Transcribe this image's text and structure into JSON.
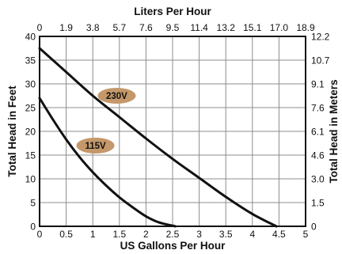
{
  "chart_data": {
    "type": "line",
    "title": "",
    "xlabel": "US Gallons Per Hour",
    "ylabel": "Total Head in Feet",
    "x2label": "Liters Per Hour",
    "y2label": "Total Head in Meters",
    "xlim": [
      0,
      5
    ],
    "ylim": [
      0,
      40
    ],
    "grid": true,
    "x_ticks": [
      "0",
      "0.5",
      "1",
      "1.5",
      "2",
      "2.5",
      "3",
      "3.5",
      "4",
      "4.5",
      "5"
    ],
    "y_ticks": [
      "0",
      "5",
      "10",
      "15",
      "20",
      "25",
      "30",
      "35",
      "40"
    ],
    "x2_ticks": [
      "0",
      "1.9",
      "3.8",
      "5.7",
      "7.6",
      "9.5",
      "11.4",
      "13.2",
      "15.1",
      "17.0",
      "18.9"
    ],
    "y2_ticks": [
      "0",
      "1.5",
      "3.0",
      "4.6",
      "6.1",
      "7.6",
      "9.1",
      "10.7",
      "12.2"
    ],
    "series": [
      {
        "name": "230V",
        "color": "#c4986a",
        "x": [
          0,
          0.5,
          1,
          1.5,
          2,
          2.5,
          3,
          3.5,
          4,
          4.45
        ],
        "y": [
          37.5,
          32.5,
          27.5,
          23.0,
          18.5,
          14.2,
          10.2,
          6.2,
          2.6,
          0
        ]
      },
      {
        "name": "115V",
        "color": "#c4986a",
        "x": [
          0,
          0.25,
          0.5,
          0.75,
          1,
          1.25,
          1.5,
          1.75,
          2,
          2.25,
          2.55
        ],
        "y": [
          27.0,
          22.5,
          18.3,
          14.6,
          11.4,
          8.6,
          6.1,
          4.0,
          2.1,
          0.8,
          0
        ]
      }
    ]
  }
}
